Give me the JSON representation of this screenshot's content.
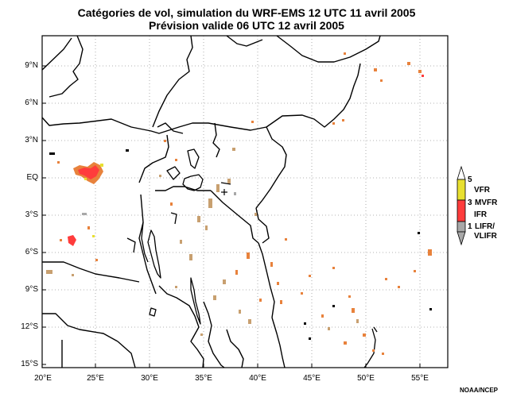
{
  "title": {
    "line1": "Catégories de vol, simulation du WRF-EMS 12 UTC 11 avril 2005",
    "line2": "Prévision valide 06 UTC 12 avril 2005"
  },
  "axes": {
    "lat_labels": [
      "9°N",
      "6°N",
      "3°N",
      "EQ",
      "3°S",
      "6°S",
      "9°S",
      "12°S",
      "15°S"
    ],
    "lon_labels": [
      "20°E",
      "25°E",
      "30°E",
      "35°E",
      "40°E",
      "45°E",
      "50°E",
      "55°E"
    ]
  },
  "legend": {
    "top_value": "5",
    "items": [
      {
        "label": "VFR",
        "color": "#e8e030"
      },
      {
        "label": "MVFR",
        "value": "3",
        "color": "#ff3c3c"
      },
      {
        "label": "IFR",
        "color": "#ff3c3c"
      },
      {
        "label": "LIFR/",
        "value": "1",
        "color": "#a8a8a8"
      },
      {
        "label": "VLIFR",
        "color": "#a8a8a8"
      }
    ],
    "colors": {
      "vfr": "#e8e030",
      "ifr": "#ff3c3c",
      "lifr": "#a8a8a8"
    }
  },
  "credit": "NOAA/NCEP",
  "colors": {
    "field_orange": "#e8823c",
    "field_tan": "#c8a070",
    "field_gray": "#a8a8a8",
    "field_red": "#ff3c3c",
    "field_yellow": "#e8e030"
  }
}
